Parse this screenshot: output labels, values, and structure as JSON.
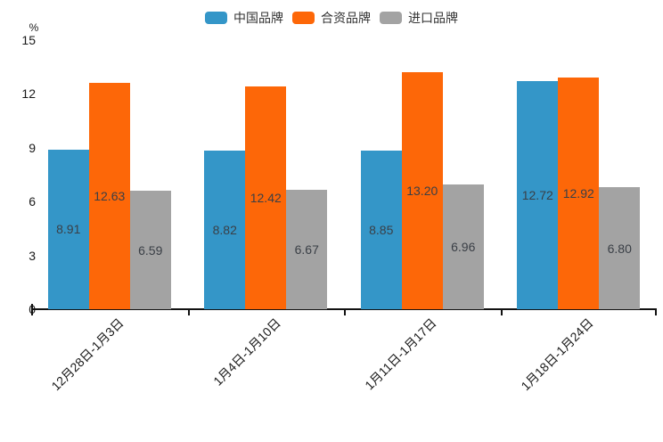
{
  "chart_data": {
    "type": "bar",
    "title": "",
    "unit_label": "%",
    "categories": [
      "12月28日-1月3日",
      "1月4日-1月10日",
      "1月11日-1月17日",
      "1月18日-1月24日"
    ],
    "series": [
      {
        "name": "中国品牌",
        "color": "#3496c8",
        "values": [
          8.91,
          8.82,
          8.85,
          12.72
        ]
      },
      {
        "name": "合资品牌",
        "color": "#fd6708",
        "values": [
          12.63,
          12.42,
          13.2,
          12.92
        ]
      },
      {
        "name": "进口品牌",
        "color": "#a3a3a3",
        "values": [
          6.59,
          6.67,
          6.96,
          6.8
        ]
      }
    ],
    "ylim": [
      0,
      15
    ],
    "yticks": [
      0,
      3,
      6,
      9,
      12,
      15
    ],
    "grid": false,
    "legend_position": "top",
    "value_labels": "inside-center",
    "value_label_decimals": 2,
    "colors": {
      "background": "#ffffff",
      "axis": "#111111",
      "tick_label": "#1a1a1a",
      "bar_value_label": "#3a3f46",
      "legend_text": "#333333"
    }
  }
}
